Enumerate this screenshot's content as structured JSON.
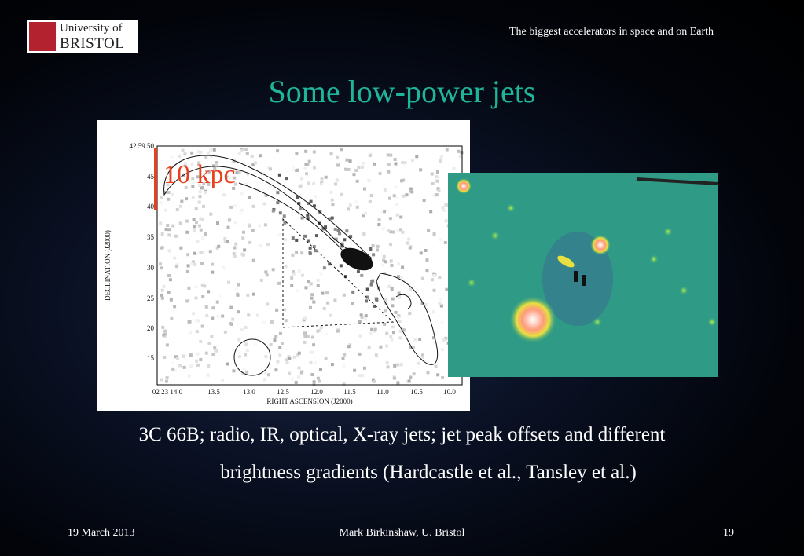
{
  "header": {
    "logo_top": "University of",
    "logo_bottom": "BRISTOL",
    "tagline": "The biggest accelerators in space and on Earth"
  },
  "title": "Some low-power jets",
  "figure": {
    "scale_label": "10 kpc",
    "y_axis_title": "DECLINATION (J2000)",
    "y_ticks": [
      "42 59 50",
      "45",
      "40",
      "35",
      "30",
      "25",
      "20",
      "15"
    ],
    "x_axis_title": "RIGHT ASCENSION (J2000)",
    "x_ticks": [
      "02 23 14.0",
      "13.5",
      "13.0",
      "12.5",
      "12.0",
      "11.5",
      "11.0",
      "10.5",
      "10.0"
    ]
  },
  "caption": {
    "line1": "3C 66B; radio, IR, optical, X-ray jets; jet peak offsets and different",
    "line2": "brightness gradients (Hardcastle et al., Tansley et al.)"
  },
  "footer": {
    "date": "19 March 2013",
    "author": "Mark Birkinshaw, U. Bristol",
    "page": "19"
  }
}
